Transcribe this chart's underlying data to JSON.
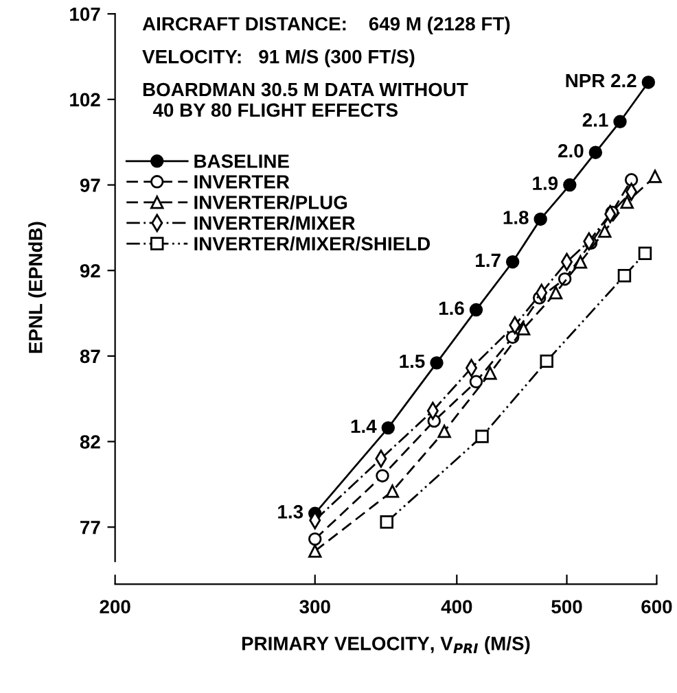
{
  "chart_data": {
    "type": "line",
    "xlabel": "PRIMARY VELOCITY, V$_{PRI}$ (M/S)",
    "ylabel": "EPNL (EPNdB)",
    "log": "x",
    "xlim": [
      200,
      600
    ],
    "xticks": [
      200,
      300,
      400,
      500,
      600
    ],
    "ylim": [
      75,
      107
    ],
    "yticks": [
      77,
      82,
      87,
      92,
      97,
      102,
      107
    ],
    "grid": false,
    "legend": "top left",
    "series": [
      {
        "name": "BASELINE",
        "color": "#000000",
        "marker": "circle",
        "line_style": "solid",
        "x": [
          300,
          348,
          384,
          416,
          448,
          474,
          503,
          530,
          557,
          590
        ],
        "values": [
          77.8,
          82.8,
          86.6,
          89.7,
          92.5,
          95.0,
          97.0,
          98.9,
          100.7,
          103.0
        ]
      },
      {
        "name": "INVERTER",
        "color": "#000000",
        "marker": "circle",
        "line_style": "dashed",
        "x": [
          300,
          344,
          382,
          416,
          448,
          473,
          498,
          525,
          548,
          570
        ],
        "values": [
          76.3,
          80.0,
          83.2,
          85.5,
          88.1,
          90.4,
          91.5,
          93.6,
          95.4,
          97.3
        ]
      },
      {
        "name": "INVERTER/PLUG",
        "color": "#000000",
        "marker": "triangle",
        "line_style": "dashed",
        "x": [
          300,
          351,
          390,
          428,
          458,
          489,
          514,
          540,
          565,
          598
        ],
        "values": [
          75.6,
          79.1,
          82.6,
          86.0,
          88.6,
          90.7,
          92.5,
          94.3,
          96.0,
          97.5
        ]
      },
      {
        "name": "INVERTER/MIXER",
        "color": "#000000",
        "marker": "diamond",
        "line_style": "dashdot",
        "x": [
          300,
          343,
          381,
          412,
          450,
          475,
          500,
          523,
          546,
          570
        ],
        "values": [
          77.4,
          81.0,
          83.8,
          86.3,
          88.8,
          90.7,
          92.5,
          93.7,
          95.3,
          96.6
        ]
      },
      {
        "name": "INVERTER/MIXER/SHIELD",
        "color": "#000000",
        "marker": "square",
        "line_style": "dashdotdot",
        "x": [
          347,
          421,
          480,
          562,
          586
        ],
        "values": [
          77.3,
          82.3,
          86.7,
          91.7,
          93.0
        ]
      }
    ],
    "annotations": [
      "AIRCRAFT DISTANCE:    649 M (2128 FT)",
      "VELOCITY:   91 M/S (300 FT/S)",
      "BOARDMAN 30.5 M DATA WITHOUT\n  40 BY 80 FLIGHT EFFECTS",
      {
        "text": "1.3",
        "x": 300,
        "y": 77.8
      },
      {
        "text": "1.4",
        "x": 348,
        "y": 82.8
      },
      {
        "text": "1.5",
        "x": 384,
        "y": 86.6
      },
      {
        "text": "1.6",
        "x": 416,
        "y": 89.7
      },
      {
        "text": "1.7",
        "x": 448,
        "y": 92.5
      },
      {
        "text": "1.8",
        "x": 474,
        "y": 95.0
      },
      {
        "text": "1.9",
        "x": 503,
        "y": 97.0
      },
      {
        "text": "2.0",
        "x": 530,
        "y": 98.9
      },
      {
        "text": "2.1",
        "x": 557,
        "y": 100.7
      },
      {
        "text": "NPR 2.2",
        "x": 590,
        "y": 103.0
      }
    ]
  }
}
